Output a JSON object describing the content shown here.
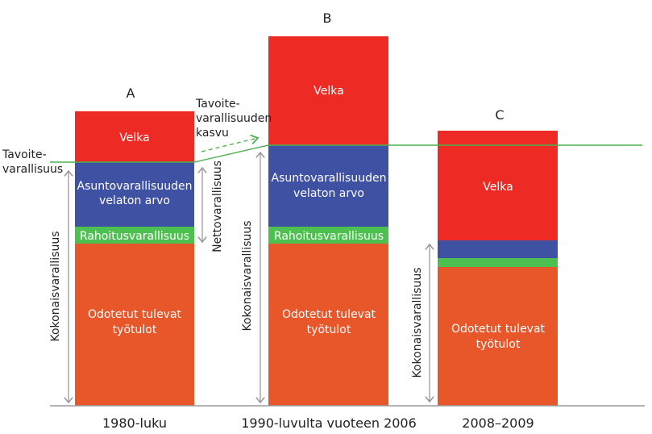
{
  "colors": {
    "velka": "#ee2a24",
    "asunto": "#3f51a3",
    "rahoitus": "#4dc14f",
    "tyotulot": "#e8572a",
    "target_line": "#4caf50",
    "axis": "#9a9a9a"
  },
  "target_label": [
    "Tavoite-",
    "varallisuus"
  ],
  "growth_label": [
    "Tavoite-",
    "varallisuuden",
    "kasvu"
  ],
  "bars": [
    {
      "letter": "A",
      "period": "1980-luku",
      "velka": "Velka",
      "asunto": [
        "Asuntovarallisuuden",
        "velaton arvo"
      ],
      "rahoitus": "Rahoitusvarallisuus",
      "tyotulot": [
        "Odotetut tulevat",
        "työtulot"
      ],
      "total_label": "Kokonaisvarallisuus",
      "net_label": "Nettovarallisuus"
    },
    {
      "letter": "B",
      "period": "1990-luvulta vuoteen 2006",
      "velka": "Velka",
      "asunto": [
        "Asuntovarallisuuden",
        "velaton arvo"
      ],
      "rahoitus": "Rahoitusvarallisuus",
      "tyotulot": [
        "Odotetut tulevat",
        "työtulot"
      ],
      "total_label": "Kokonaisvarallisuus"
    },
    {
      "letter": "C",
      "period": "2008–2009",
      "velka": "Velka",
      "tyotulot": [
        "Odotetut tulevat",
        "työtulot"
      ],
      "total_label": "Kokonaisvarallisuus"
    }
  ]
}
